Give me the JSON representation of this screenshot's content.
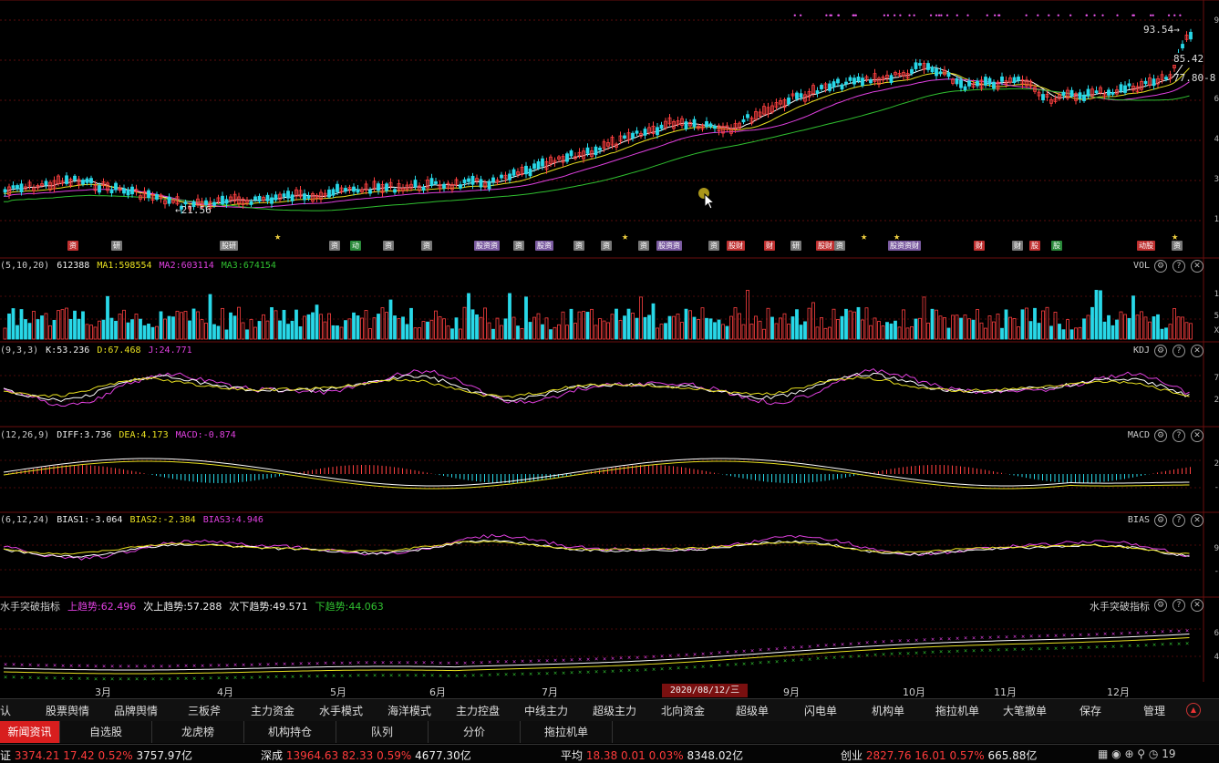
{
  "price_chart": {
    "high_label": "93.54→",
    "low_label": "←21.56",
    "right_ticks": [
      "9",
      "85.42",
      "77.80-8",
      "6",
      "4",
      "3",
      "1"
    ]
  },
  "badges": {
    "items": [
      {
        "label": "资",
        "color": "#c03030"
      },
      {
        "label": "研",
        "color": "#777"
      },
      {
        "label": "股研",
        "color": "#777"
      },
      {
        "label": "资",
        "color": "#777"
      },
      {
        "label": "动",
        "color": "#2a8a3a"
      },
      {
        "label": "资",
        "color": "#777"
      },
      {
        "label": "资",
        "color": "#777"
      },
      {
        "label": "股资资",
        "color": "#7a5aa0"
      },
      {
        "label": "资",
        "color": "#777"
      },
      {
        "label": "股资",
        "color": "#7a5aa0"
      },
      {
        "label": "资",
        "color": "#777"
      },
      {
        "label": "资",
        "color": "#777"
      },
      {
        "label": "资",
        "color": "#777"
      },
      {
        "label": "股资资",
        "color": "#7a5aa0"
      },
      {
        "label": "资",
        "color": "#777"
      },
      {
        "label": "股财",
        "color": "#c03030"
      },
      {
        "label": "财",
        "color": "#c03030"
      },
      {
        "label": "研",
        "color": "#777"
      },
      {
        "label": "股财",
        "color": "#c03030"
      },
      {
        "label": "资",
        "color": "#777"
      },
      {
        "label": "股资资财",
        "color": "#7a5aa0"
      },
      {
        "label": "财",
        "color": "#c03030"
      },
      {
        "label": "财",
        "color": "#777"
      },
      {
        "label": "股",
        "color": "#c03030"
      },
      {
        "label": "股",
        "color": "#2a8a3a"
      },
      {
        "label": "动股",
        "color": "#c03030"
      },
      {
        "label": "资",
        "color": "#777"
      }
    ]
  },
  "vol": {
    "params": "(5,10,20)",
    "value": "612388",
    "ma1": "MA1:598554",
    "ma2": "MA2:603114",
    "ma3": "MA3:674154",
    "title": "VOL",
    "right_ticks": [
      "1",
      "5",
      "X"
    ]
  },
  "kdj": {
    "params": "(9,3,3)",
    "k": "K:53.236",
    "d": "D:67.468",
    "j": "J:24.771",
    "title": "KDJ",
    "right_ticks": [
      "7",
      "2"
    ]
  },
  "macd": {
    "params": "(12,26,9)",
    "diff": "DIFF:3.736",
    "dea": "DEA:4.173",
    "macd": "MACD:-0.874",
    "title": "MACD",
    "right_ticks": [
      "2",
      "-"
    ]
  },
  "bias": {
    "params": "(6,12,24)",
    "b1": "BIAS1:-3.064",
    "b2": "BIAS2:-2.384",
    "b3": "BIAS3:4.946",
    "title": "BIAS",
    "right_ticks": [
      "9",
      "-"
    ]
  },
  "breakout": {
    "name": "水手突破指标",
    "up": "上趋势:62.496",
    "next_up": "次上趋势:57.288",
    "next_down": "次下趋势:49.571",
    "down": "下趋势:44.063",
    "title": "水手突破指标",
    "right_ticks": [
      "6",
      "4"
    ]
  },
  "months": [
    "3月",
    "4月",
    "5月",
    "6月",
    "7月",
    "9月",
    "10月",
    "11月",
    "12月"
  ],
  "cursor_date": "2020/08/12/三",
  "tabs": [
    "确认",
    "股票舆情",
    "品牌舆情",
    "三板斧",
    "主力资金",
    "水手模式",
    "海洋模式",
    "主力控盘",
    "中线主力",
    "超级主力",
    "北向资金",
    "超级单",
    "闪电单",
    "机构单",
    "拖拉机单",
    "大笔撤单",
    "保存",
    "管理"
  ],
  "panel_tabs": [
    "新闻资讯",
    "自选股",
    "龙虎榜",
    "机构持仓",
    "队列",
    "分价",
    "拖拉机单"
  ],
  "status": {
    "sh_label": "上证",
    "sh_value": "3374.21",
    "sh_change": "17.42",
    "sh_pct": "0.52%",
    "sh_amount": "3757.97亿",
    "sz_label": "深成",
    "sz_value": "13964.63",
    "sz_change": "82.33",
    "sz_pct": "0.59%",
    "sz_amount": "4677.30亿",
    "avg_label": "平均",
    "avg_value": "18.38",
    "avg_change": "0.01",
    "avg_pct": "0.03%",
    "avg_amount": "8348.02亿",
    "cy_label": "创业",
    "cy_value": "2827.76",
    "cy_change": "16.01",
    "cy_pct": "0.57%",
    "cy_amount": "665.88亿",
    "clock": "19"
  },
  "colors": {
    "up": "#ff4040",
    "down": "#28d8e8",
    "ma_white": "#ffffff",
    "ma_yellow": "#e8e020",
    "ma_magenta": "#e040e0",
    "ma_green": "#30c030",
    "grid": "#7a1010"
  }
}
